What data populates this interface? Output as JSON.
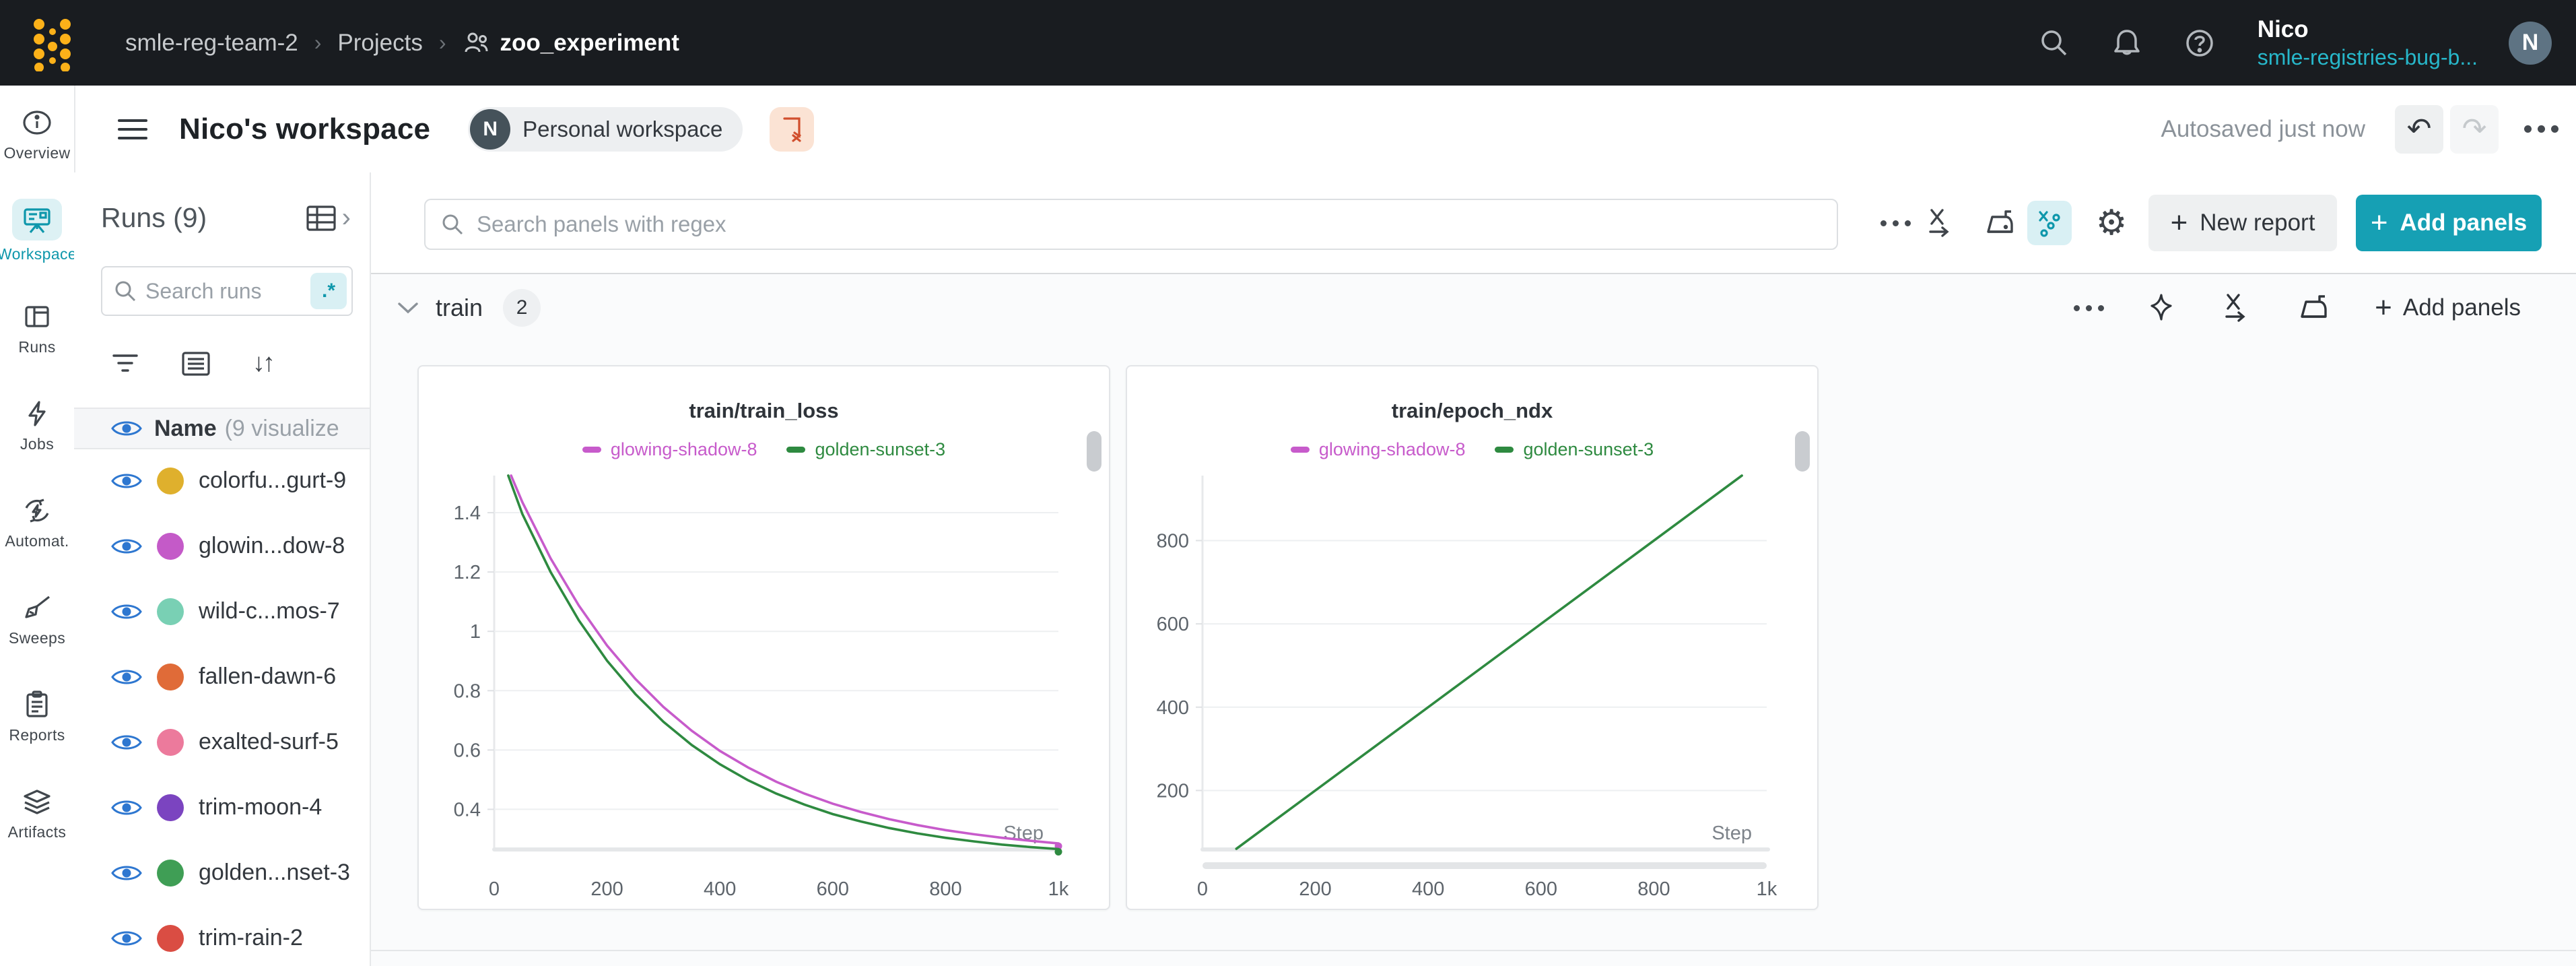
{
  "topbar": {
    "breadcrumb": {
      "team": "smle-reg-team-2",
      "section": "Projects",
      "project": "zoo_experiment"
    },
    "user": {
      "name": "Nico",
      "team": "smle-registries-bug-b...",
      "avatar_initial": "N"
    }
  },
  "header": {
    "title": "Nico's workspace",
    "badge": {
      "initial": "N",
      "label": "Personal workspace"
    },
    "autosaved": "Autosaved just now"
  },
  "sidebar": {
    "items": [
      {
        "label": "Overview",
        "active": false
      },
      {
        "label": "Workspace",
        "active": true
      },
      {
        "label": "Runs",
        "active": false
      },
      {
        "label": "Jobs",
        "active": false
      },
      {
        "label": "Automat.",
        "active": false
      },
      {
        "label": "Sweeps",
        "active": false
      },
      {
        "label": "Reports",
        "active": false
      },
      {
        "label": "Artifacts",
        "active": false
      }
    ]
  },
  "runs_panel": {
    "title": "Runs (9)",
    "search_placeholder": "Search runs",
    "regex_toggle": ".*",
    "header": {
      "name": "Name",
      "suffix": "(9 visualize"
    },
    "runs": [
      {
        "name": "colorfu...gurt-9",
        "color": "#dfb02d"
      },
      {
        "name": "glowin...dow-8",
        "color": "#c45ac8"
      },
      {
        "name": "wild-c...mos-7",
        "color": "#79d0b4"
      },
      {
        "name": "fallen-dawn-6",
        "color": "#e06b38"
      },
      {
        "name": "exalted-surf-5",
        "color": "#ec7a9c"
      },
      {
        "name": "trim-moon-4",
        "color": "#7b44c0"
      },
      {
        "name": "golden...nset-3",
        "color": "#3f9e55"
      },
      {
        "name": "trim-rain-2",
        "color": "#da4d43"
      }
    ]
  },
  "toolbar": {
    "search_placeholder": "Search panels with regex",
    "new_report_label": "New report",
    "add_panels_label": "Add panels",
    "plus": "+"
  },
  "section": {
    "name": "train",
    "count": "2",
    "add_panels_label": "Add panels",
    "plus": "+"
  },
  "icons": {
    "gear": "⚙",
    "sort": "↓↑",
    "undo": "↶",
    "redo": "↷",
    "chevron_right": "›",
    "crumb_sep": "›"
  },
  "colors": {
    "accent_teal": "#16a0b4",
    "nav_active_teal": "#0e97ab",
    "eye_blue": "#2e77d0",
    "magenta_series": "#c75bcb",
    "green_series": "#2e8a40",
    "topbar_bg": "#191c20",
    "logo_yellow": "#fcb119"
  },
  "chart_data": [
    {
      "type": "line",
      "title": "train/train_loss",
      "xlabel": "Step",
      "legend": [
        {
          "label": "glowing-shadow-8",
          "color": "#c75bcb"
        },
        {
          "label": "golden-sunset-3",
          "color": "#2e8a40"
        }
      ],
      "xlim": [
        0,
        1000
      ],
      "ylim": [
        0.267,
        1.525
      ],
      "yticks": [
        {
          "v": 0.4,
          "label": "0.4"
        },
        {
          "v": 0.6,
          "label": "0.6"
        },
        {
          "v": 0.8,
          "label": "0.8"
        },
        {
          "v": 1,
          "label": "1"
        },
        {
          "v": 1.2,
          "label": "1.2"
        },
        {
          "v": 1.4,
          "label": "1.4"
        }
      ],
      "xticks": [
        {
          "v": 0,
          "label": "0"
        },
        {
          "v": 200,
          "label": "200"
        },
        {
          "v": 400,
          "label": "400"
        },
        {
          "v": 600,
          "label": "600"
        },
        {
          "v": 800,
          "label": "800"
        },
        {
          "v": 1000,
          "label": "1k"
        }
      ],
      "grid": true,
      "legend_position": "top",
      "end_markers": true,
      "h_scrollbar": false,
      "series": [
        {
          "name": "glowing-shadow-8",
          "color": "#c75bcb",
          "points": [
            [
              30,
              1.525
            ],
            [
              50,
              1.435
            ],
            [
              100,
              1.246
            ],
            [
              150,
              1.087
            ],
            [
              200,
              0.952
            ],
            [
              250,
              0.84
            ],
            [
              300,
              0.745
            ],
            [
              350,
              0.665
            ],
            [
              400,
              0.597
            ],
            [
              450,
              0.541
            ],
            [
              500,
              0.493
            ],
            [
              550,
              0.453
            ],
            [
              600,
              0.419
            ],
            [
              650,
              0.391
            ],
            [
              700,
              0.367
            ],
            [
              750,
              0.347
            ],
            [
              800,
              0.33
            ],
            [
              850,
              0.316
            ],
            [
              900,
              0.304
            ],
            [
              950,
              0.294
            ],
            [
              1000,
              0.285
            ]
          ]
        },
        {
          "name": "golden-sunset-3",
          "color": "#2e8a40",
          "points": [
            [
              25,
              1.525
            ],
            [
              50,
              1.395
            ],
            [
              100,
              1.2
            ],
            [
              150,
              1.037
            ],
            [
              200,
              0.901
            ],
            [
              250,
              0.789
            ],
            [
              300,
              0.695
            ],
            [
              350,
              0.617
            ],
            [
              400,
              0.552
            ],
            [
              450,
              0.498
            ],
            [
              500,
              0.453
            ],
            [
              550,
              0.416
            ],
            [
              600,
              0.384
            ],
            [
              650,
              0.359
            ],
            [
              700,
              0.337
            ],
            [
              750,
              0.319
            ],
            [
              800,
              0.304
            ],
            [
              850,
              0.292
            ],
            [
              900,
              0.281
            ],
            [
              950,
              0.273
            ],
            [
              1000,
              0.266
            ]
          ]
        }
      ]
    },
    {
      "type": "line",
      "title": "train/epoch_ndx",
      "xlabel": "Step",
      "legend": [
        {
          "label": "glowing-shadow-8",
          "color": "#c75bcb"
        },
        {
          "label": "golden-sunset-3",
          "color": "#2e8a40"
        }
      ],
      "xlim": [
        0,
        1000
      ],
      "ylim": [
        60,
        956
      ],
      "yticks": [
        {
          "v": 200,
          "label": "200"
        },
        {
          "v": 400,
          "label": "400"
        },
        {
          "v": 600,
          "label": "600"
        },
        {
          "v": 800,
          "label": "800"
        }
      ],
      "xticks": [
        {
          "v": 0,
          "label": "0"
        },
        {
          "v": 200,
          "label": "200"
        },
        {
          "v": 400,
          "label": "400"
        },
        {
          "v": 600,
          "label": "600"
        },
        {
          "v": 800,
          "label": "800"
        },
        {
          "v": 1000,
          "label": "1k"
        }
      ],
      "grid": true,
      "legend_position": "top",
      "end_markers": false,
      "h_scrollbar": true,
      "series": [
        {
          "name": "golden-sunset-3",
          "color": "#2e8a40",
          "points": [
            [
              60,
              60
            ],
            [
              200,
              200
            ],
            [
              400,
              400
            ],
            [
              600,
              600
            ],
            [
              800,
              800
            ],
            [
              956,
              956
            ]
          ]
        }
      ]
    }
  ]
}
